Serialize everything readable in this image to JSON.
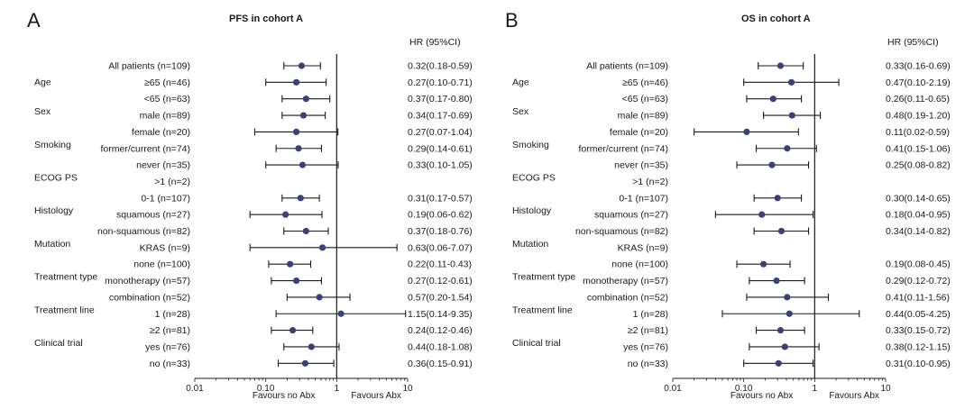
{
  "chart_data": [
    {
      "panel_label": "A",
      "type": "forest",
      "title": "PFS in cohort A",
      "hr_header": "HR (95%CI)",
      "x_scale": "log",
      "xlim": [
        0.01,
        10
      ],
      "x_ticks": [
        "0.01",
        "0.10",
        "1",
        "10"
      ],
      "x_tick_values": [
        0.01,
        0.1,
        1,
        10
      ],
      "x_favour_left": "Favours no Abx",
      "x_favour_right": "Favours Abx",
      "reference_line": 1,
      "rows": [
        {
          "group": "",
          "label": "All patients (n=109)",
          "hr": 0.32,
          "lo": 0.18,
          "hi": 0.59,
          "hr_text": "0.32(0.18-0.59)"
        },
        {
          "group": "Age",
          "label": "≥65 (n=46)",
          "hr": 0.27,
          "lo": 0.1,
          "hi": 0.71,
          "hr_text": "0.27(0.10-0.71)"
        },
        {
          "group": "",
          "label": "<65 (n=63)",
          "hr": 0.37,
          "lo": 0.17,
          "hi": 0.8,
          "hr_text": "0.37(0.17-0.80)"
        },
        {
          "group": "Sex",
          "label": "male (n=89)",
          "hr": 0.34,
          "lo": 0.17,
          "hi": 0.69,
          "hr_text": "0.34(0.17-0.69)"
        },
        {
          "group": "",
          "label": "female (n=20)",
          "hr": 0.27,
          "lo": 0.07,
          "hi": 1.04,
          "hr_text": "0.27(0.07-1.04)"
        },
        {
          "group": "Smoking",
          "label": "former/current (n=74)",
          "hr": 0.29,
          "lo": 0.14,
          "hi": 0.61,
          "hr_text": "0.29(0.14-0.61)"
        },
        {
          "group": "",
          "label": "never (n=35)",
          "hr": 0.33,
          "lo": 0.1,
          "hi": 1.05,
          "hr_text": "0.33(0.10-1.05)"
        },
        {
          "group": "ECOG PS",
          "label": ">1 (n=2)",
          "hr": null,
          "lo": null,
          "hi": null,
          "hr_text": ""
        },
        {
          "group": "",
          "label": "0-1 (n=107)",
          "hr": 0.31,
          "lo": 0.17,
          "hi": 0.57,
          "hr_text": "0.31(0.17-0.57)"
        },
        {
          "group": "Histology",
          "label": "squamous (n=27)",
          "hr": 0.19,
          "lo": 0.06,
          "hi": 0.62,
          "hr_text": "0.19(0.06-0.62)"
        },
        {
          "group": "",
          "label": "non-squamous (n=82)",
          "hr": 0.37,
          "lo": 0.18,
          "hi": 0.76,
          "hr_text": "0.37(0.18-0.76)"
        },
        {
          "group": "Mutation",
          "label": "KRAS (n=9)",
          "hr": 0.63,
          "lo": 0.06,
          "hi": 7.07,
          "hr_text": "0.63(0.06-7.07)"
        },
        {
          "group": "",
          "label": "none (n=100)",
          "hr": 0.22,
          "lo": 0.11,
          "hi": 0.43,
          "hr_text": "0.22(0.11-0.43)"
        },
        {
          "group": "Treatment type",
          "label": "monotherapy (n=57)",
          "hr": 0.27,
          "lo": 0.12,
          "hi": 0.61,
          "hr_text": "0.27(0.12-0.61)"
        },
        {
          "group": "",
          "label": "combination (n=52)",
          "hr": 0.57,
          "lo": 0.2,
          "hi": 1.54,
          "hr_text": "0.57(0.20-1.54)"
        },
        {
          "group": "Treatment line",
          "label": "1 (n=28)",
          "hr": 1.15,
          "lo": 0.14,
          "hi": 9.35,
          "hr_text": "1.15(0.14-9.35)"
        },
        {
          "group": "",
          "label": "≥2 (n=81)",
          "hr": 0.24,
          "lo": 0.12,
          "hi": 0.46,
          "hr_text": "0.24(0.12-0.46)"
        },
        {
          "group": "Clinical trial",
          "label": "yes (n=76)",
          "hr": 0.44,
          "lo": 0.18,
          "hi": 1.08,
          "hr_text": "0.44(0.18-1.08)"
        },
        {
          "group": "",
          "label": "no (n=33)",
          "hr": 0.36,
          "lo": 0.15,
          "hi": 0.91,
          "hr_text": "0.36(0.15-0.91)"
        }
      ]
    },
    {
      "panel_label": "B",
      "type": "forest",
      "title": "OS in cohort A",
      "hr_header": "HR (95%CI)",
      "x_scale": "log",
      "xlim": [
        0.01,
        10
      ],
      "x_ticks": [
        "0.01",
        "0.10",
        "1",
        "10"
      ],
      "x_tick_values": [
        0.01,
        0.1,
        1,
        10
      ],
      "x_favour_left": "Favours no Abx",
      "x_favour_right": "Favours Abx",
      "reference_line": 1,
      "rows": [
        {
          "group": "",
          "label": "All patients (n=109)",
          "hr": 0.33,
          "lo": 0.16,
          "hi": 0.69,
          "hr_text": "0.33(0.16-0.69)"
        },
        {
          "group": "Age",
          "label": "≥65 (n=46)",
          "hr": 0.47,
          "lo": 0.1,
          "hi": 2.19,
          "hr_text": "0.47(0.10-2.19)"
        },
        {
          "group": "",
          "label": "<65 (n=63)",
          "hr": 0.26,
          "lo": 0.11,
          "hi": 0.65,
          "hr_text": "0.26(0.11-0.65)"
        },
        {
          "group": "Sex",
          "label": "male (n=89)",
          "hr": 0.48,
          "lo": 0.19,
          "hi": 1.2,
          "hr_text": "0.48(0.19-1.20)"
        },
        {
          "group": "",
          "label": "female (n=20)",
          "hr": 0.11,
          "lo": 0.02,
          "hi": 0.59,
          "hr_text": "0.11(0.02-0.59)"
        },
        {
          "group": "Smoking",
          "label": "former/current (n=74)",
          "hr": 0.41,
          "lo": 0.15,
          "hi": 1.06,
          "hr_text": "0.41(0.15-1.06)"
        },
        {
          "group": "",
          "label": "never (n=35)",
          "hr": 0.25,
          "lo": 0.08,
          "hi": 0.82,
          "hr_text": "0.25(0.08-0.82)"
        },
        {
          "group": "ECOG PS",
          "label": ">1 (n=2)",
          "hr": null,
          "lo": null,
          "hi": null,
          "hr_text": ""
        },
        {
          "group": "",
          "label": "0-1 (n=107)",
          "hr": 0.3,
          "lo": 0.14,
          "hi": 0.65,
          "hr_text": "0.30(0.14-0.65)"
        },
        {
          "group": "Histology",
          "label": "squamous (n=27)",
          "hr": 0.18,
          "lo": 0.04,
          "hi": 0.95,
          "hr_text": "0.18(0.04-0.95)"
        },
        {
          "group": "",
          "label": "non-squamous (n=82)",
          "hr": 0.34,
          "lo": 0.14,
          "hi": 0.82,
          "hr_text": "0.34(0.14-0.82)"
        },
        {
          "group": "Mutation",
          "label": "KRAS (n=9)",
          "hr": null,
          "lo": null,
          "hi": null,
          "hr_text": ""
        },
        {
          "group": "",
          "label": "none (n=100)",
          "hr": 0.19,
          "lo": 0.08,
          "hi": 0.45,
          "hr_text": "0.19(0.08-0.45)"
        },
        {
          "group": "Treatment type",
          "label": "monotherapy (n=57)",
          "hr": 0.29,
          "lo": 0.12,
          "hi": 0.72,
          "hr_text": "0.29(0.12-0.72)"
        },
        {
          "group": "",
          "label": "combination (n=52)",
          "hr": 0.41,
          "lo": 0.11,
          "hi": 1.56,
          "hr_text": "0.41(0.11-1.56)"
        },
        {
          "group": "Treatment line",
          "label": "1 (n=28)",
          "hr": 0.44,
          "lo": 0.05,
          "hi": 4.25,
          "hr_text": "0.44(0.05-4.25)"
        },
        {
          "group": "",
          "label": "≥2 (n=81)",
          "hr": 0.33,
          "lo": 0.15,
          "hi": 0.72,
          "hr_text": "0.33(0.15-0.72)"
        },
        {
          "group": "Clinical trial",
          "label": "yes (n=76)",
          "hr": 0.38,
          "lo": 0.12,
          "hi": 1.15,
          "hr_text": "0.38(0.12-1.15)"
        },
        {
          "group": "",
          "label": "no (n=33)",
          "hr": 0.31,
          "lo": 0.1,
          "hi": 0.95,
          "hr_text": "0.31(0.10-0.95)"
        }
      ]
    }
  ],
  "colors": {
    "marker": "#3d3f78",
    "line": "#1a1a1a",
    "text": "#1a1a1a"
  }
}
